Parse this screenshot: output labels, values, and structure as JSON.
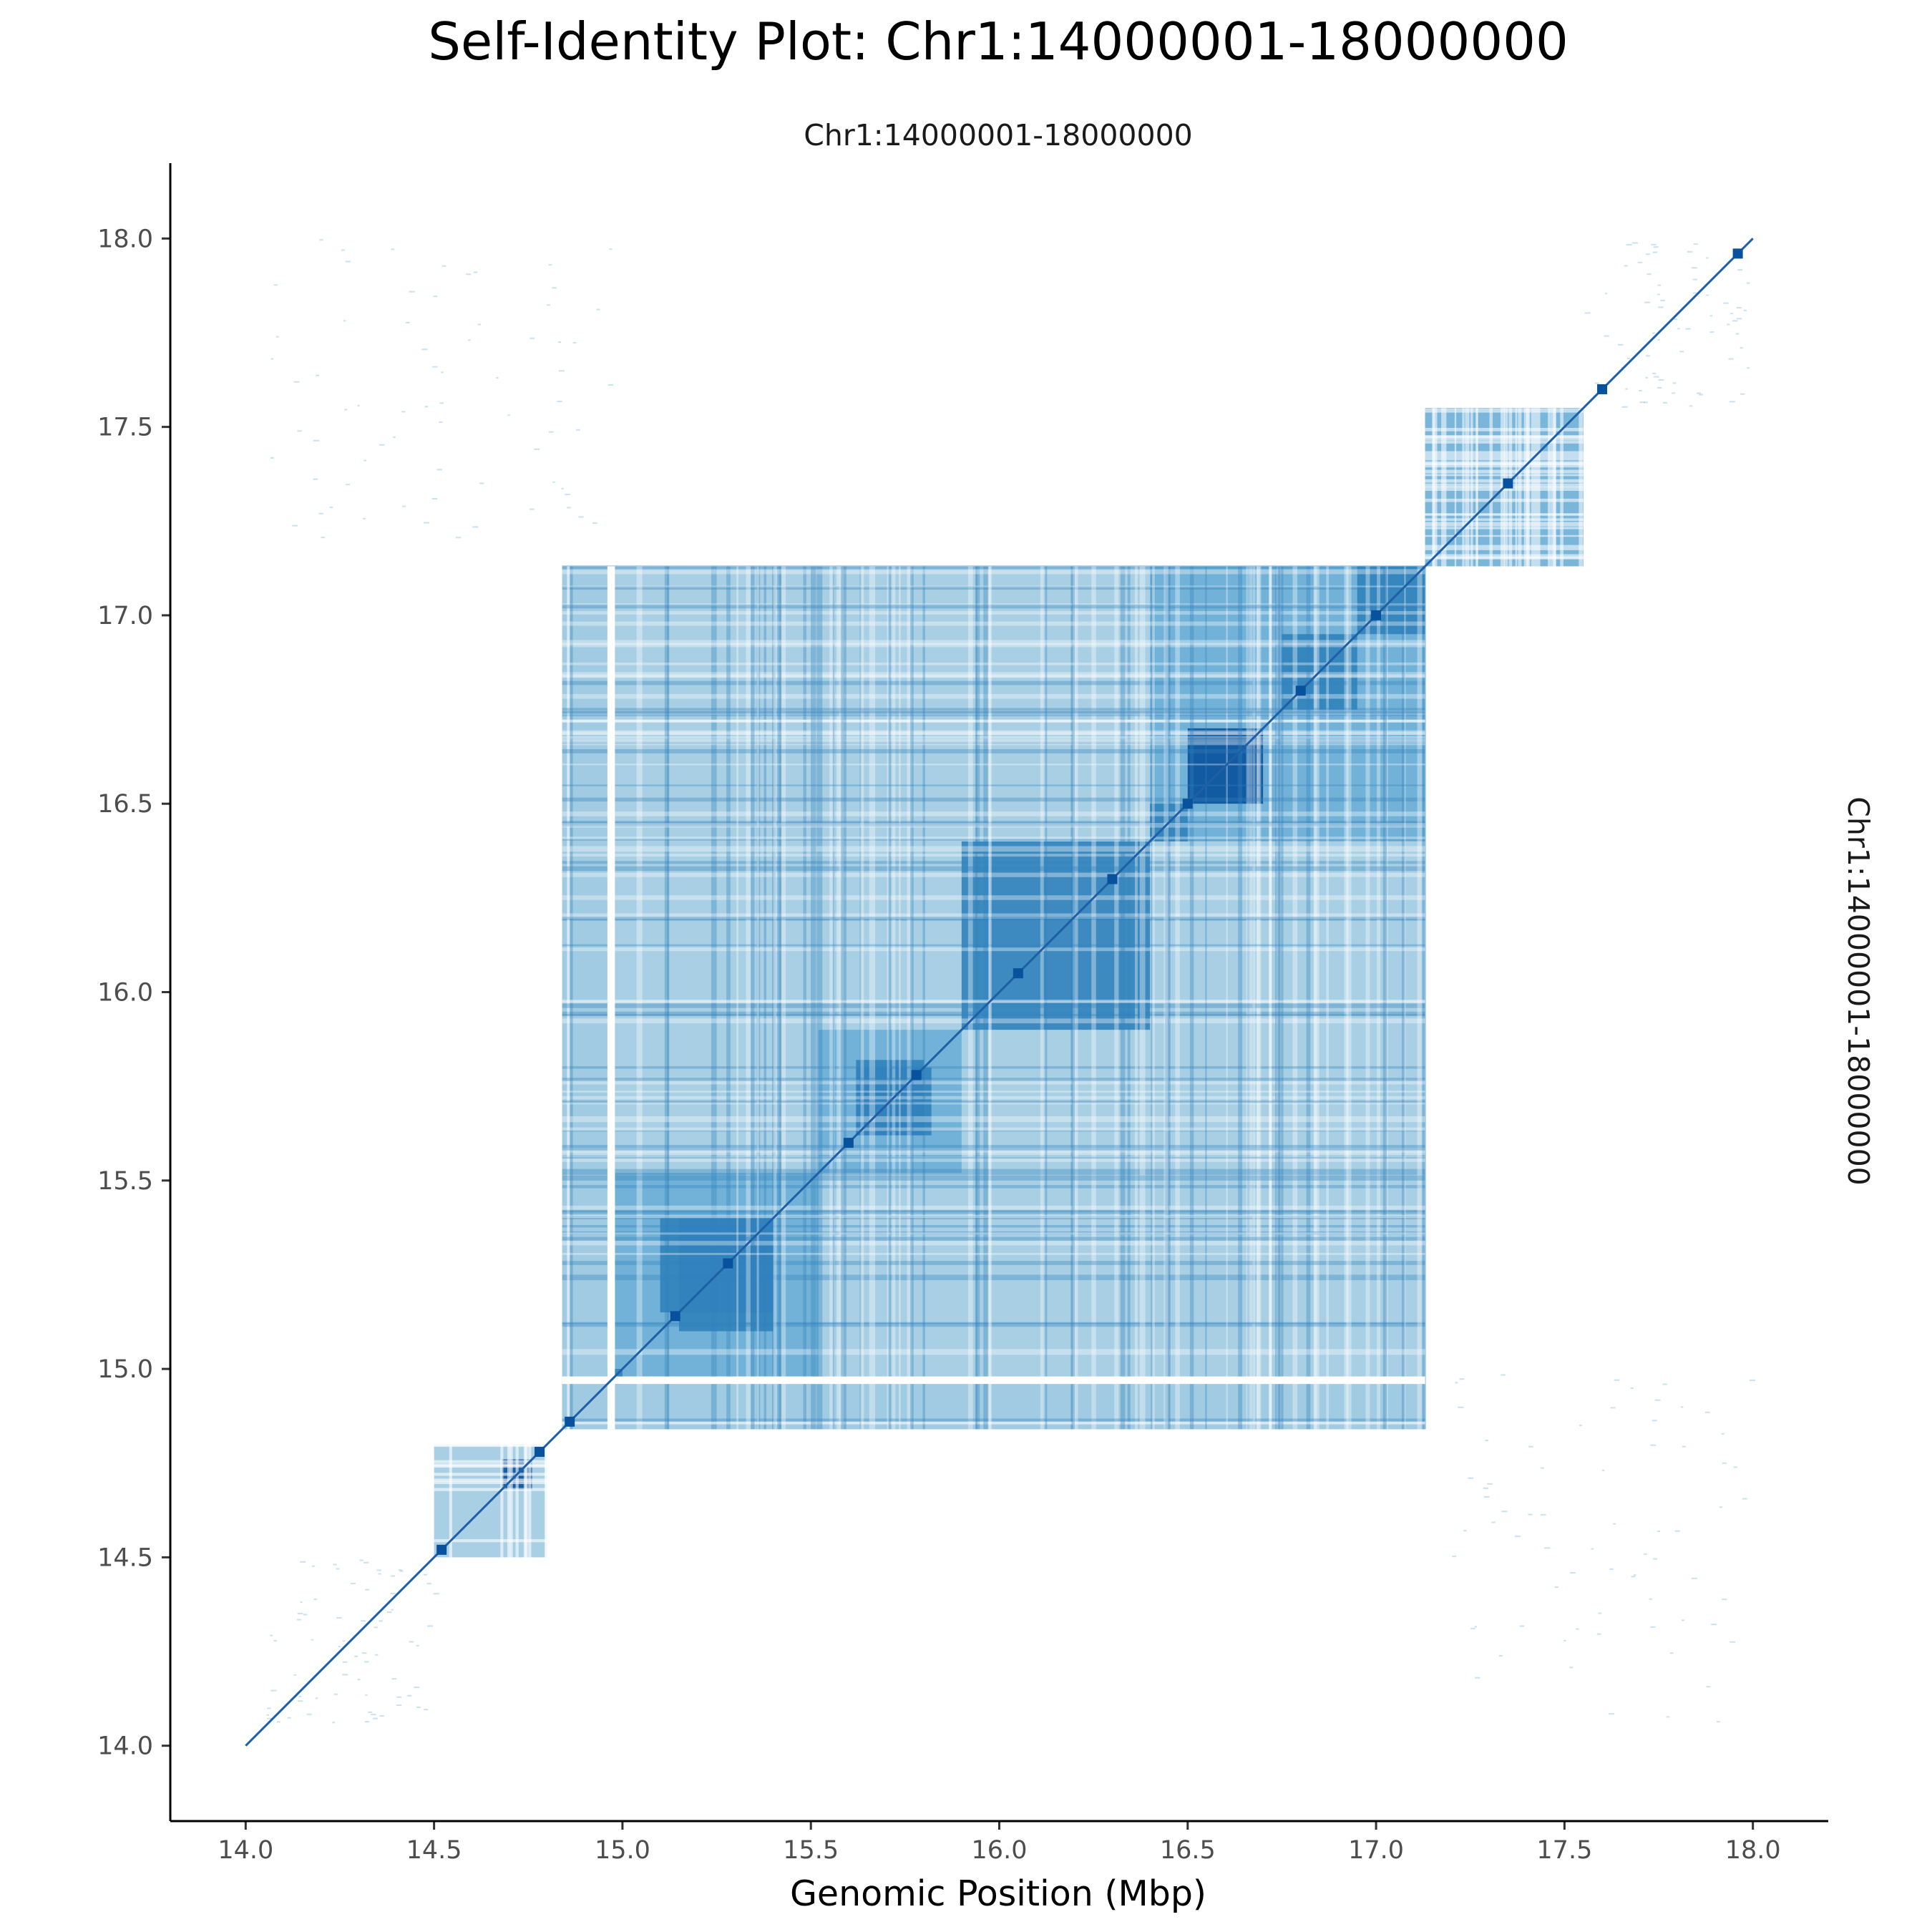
{
  "chart_data": {
    "type": "heatmap",
    "title": "Self-Identity Plot: Chr1:14000001-18000000",
    "facet_col_label": "Chr1:14000001-18000000",
    "facet_row_label": "Chr1:14000001-18000000",
    "xlabel": "Genomic Position (Mbp)",
    "ylabel": "",
    "xlim": [
      13.8,
      18.2
    ],
    "ylim": [
      13.8,
      18.2
    ],
    "x_ticks": [
      "14.0",
      "14.5",
      "15.0",
      "15.5",
      "16.0",
      "16.5",
      "17.0",
      "17.5",
      "18.0"
    ],
    "y_ticks": [
      "14.0",
      "14.5",
      "15.0",
      "15.5",
      "16.0",
      "16.5",
      "17.0",
      "17.5",
      "18.0"
    ],
    "grid": false,
    "colors": {
      "very_light": "#deebf7",
      "light": "#9ecae1",
      "medium": "#6baed6",
      "strong": "#3182bd",
      "darkest": "#08519c",
      "diagonal": "#1f5fa6"
    },
    "diagonal": {
      "start": 14.0,
      "end": 18.0
    },
    "blocks": [
      {
        "x": [
          14.84,
          17.13
        ],
        "y": [
          14.84,
          17.13
        ],
        "level": "light"
      },
      {
        "x": [
          14.84,
          17.13
        ],
        "y": [
          14.84,
          14.98
        ],
        "level": "light"
      },
      {
        "x": [
          14.98,
          15.52
        ],
        "y": [
          14.98,
          15.52
        ],
        "level": "medium"
      },
      {
        "x": [
          15.15,
          15.4
        ],
        "y": [
          15.1,
          15.4
        ],
        "level": "strong"
      },
      {
        "x": [
          15.52,
          15.9
        ],
        "y": [
          15.52,
          15.9
        ],
        "level": "medium"
      },
      {
        "x": [
          15.62,
          15.8
        ],
        "y": [
          15.62,
          15.82
        ],
        "level": "strong"
      },
      {
        "x": [
          15.9,
          16.4
        ],
        "y": [
          15.9,
          16.4
        ],
        "level": "strong"
      },
      {
        "x": [
          16.4,
          17.13
        ],
        "y": [
          16.4,
          17.13
        ],
        "level": "medium"
      },
      {
        "x": [
          16.5,
          16.7
        ],
        "y": [
          16.5,
          16.7
        ],
        "level": "darkest"
      },
      {
        "x": [
          16.4,
          16.5
        ],
        "y": [
          16.4,
          16.5
        ],
        "level": "strong"
      },
      {
        "x": [
          16.75,
          16.95
        ],
        "y": [
          16.75,
          16.95
        ],
        "level": "strong"
      },
      {
        "x": [
          16.95,
          17.13
        ],
        "y": [
          16.95,
          17.13
        ],
        "level": "strong"
      },
      {
        "x": [
          17.13,
          17.55
        ],
        "y": [
          17.13,
          17.55
        ],
        "level": "medium"
      },
      {
        "x": [
          14.5,
          14.8
        ],
        "y": [
          14.5,
          14.8
        ],
        "level": "light"
      },
      {
        "x": [
          14.68,
          14.76
        ],
        "y": [
          14.68,
          14.76
        ],
        "level": "darkest"
      },
      {
        "x": [
          14.96,
          15.0
        ],
        "y": [
          14.96,
          15.0
        ],
        "level": "strong"
      }
    ],
    "gaps": [
      {
        "x": [
          14.96,
          14.98
        ],
        "y": [
          14.84,
          17.13
        ]
      },
      {
        "x": [
          14.84,
          17.13
        ],
        "y": [
          14.96,
          14.98
        ]
      }
    ],
    "sparse_regions": [
      {
        "x": [
          14.05,
          15.0
        ],
        "y": [
          17.2,
          18.0
        ]
      },
      {
        "x": [
          17.2,
          18.0
        ],
        "y": [
          14.05,
          15.0
        ]
      },
      {
        "x": [
          14.05,
          14.5
        ],
        "y": [
          14.05,
          14.5
        ]
      },
      {
        "x": [
          17.55,
          18.0
        ],
        "y": [
          17.55,
          18.0
        ]
      }
    ],
    "diagonal_nodes": [
      14.52,
      14.78,
      14.86,
      15.14,
      15.28,
      15.6,
      15.78,
      16.05,
      16.3,
      16.5,
      16.8,
      17.0,
      17.35,
      17.6,
      17.96
    ]
  }
}
